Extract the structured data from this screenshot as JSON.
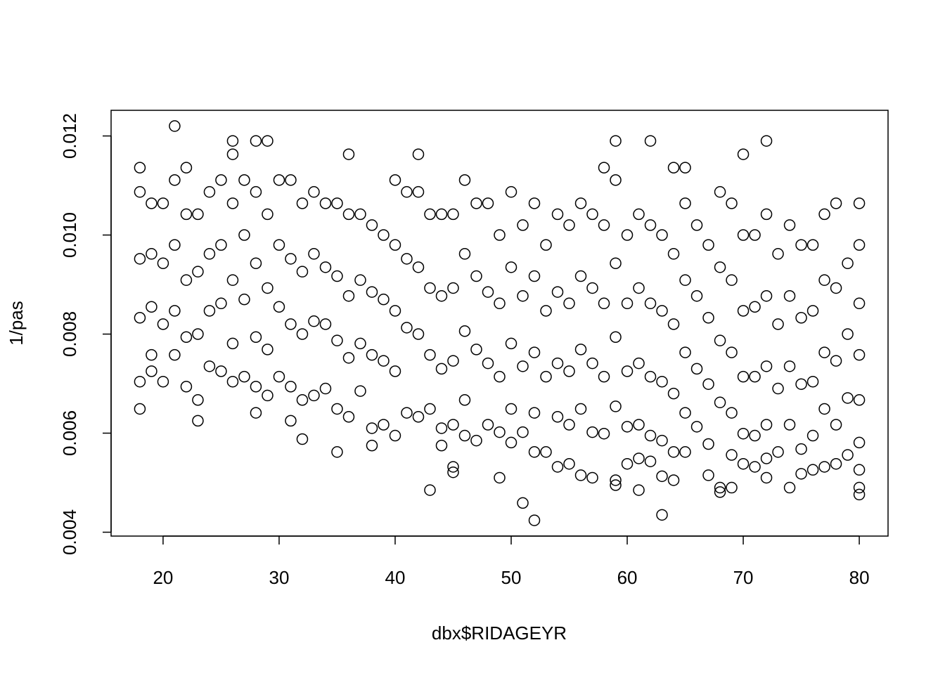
{
  "chart_data": {
    "type": "scatter",
    "x_label": "dbx$RIDAGEYR",
    "y_label": "1/pas",
    "xlim": [
      15.52,
      82.48
    ],
    "ylim": [
      0.003922,
      0.012518
    ],
    "xticks": [
      20,
      30,
      40,
      50,
      60,
      70,
      80
    ],
    "yticks": [
      0.004,
      0.006,
      0.008,
      {
        "value": 0.01,
        "label": "0.010"
      },
      0.012
    ],
    "color": "#000000",
    "x": [
      18,
      18,
      18,
      18,
      18,
      18,
      19,
      19,
      19,
      19,
      19,
      20,
      20,
      20,
      20,
      21,
      21,
      21,
      21,
      21,
      22,
      22,
      22,
      22,
      22,
      23,
      23,
      23,
      23,
      23,
      24,
      24,
      24,
      24,
      25,
      25,
      25,
      25,
      26,
      26,
      26,
      26,
      26,
      26,
      27,
      27,
      27,
      27,
      28,
      28,
      28,
      28,
      28,
      28,
      29,
      29,
      29,
      29,
      29,
      30,
      30,
      30,
      30,
      31,
      31,
      31,
      31,
      31,
      32,
      32,
      32,
      32,
      32,
      33,
      33,
      33,
      33,
      34,
      34,
      34,
      34,
      35,
      35,
      35,
      35,
      35,
      36,
      36,
      36,
      36,
      36,
      37,
      37,
      37,
      37,
      38,
      38,
      38,
      38,
      38,
      39,
      39,
      39,
      39,
      40,
      40,
      40,
      40,
      40,
      41,
      41,
      41,
      41,
      42,
      42,
      42,
      42,
      42,
      43,
      43,
      43,
      43,
      43,
      44,
      44,
      44,
      44,
      44,
      45,
      45,
      45,
      45,
      45,
      45,
      46,
      46,
      46,
      46,
      46,
      47,
      47,
      47,
      47,
      48,
      48,
      48,
      48,
      49,
      49,
      49,
      49,
      49,
      50,
      50,
      50,
      50,
      50,
      51,
      51,
      51,
      51,
      51,
      52,
      52,
      52,
      52,
      52,
      52,
      53,
      53,
      53,
      53,
      54,
      54,
      54,
      54,
      54,
      55,
      55,
      55,
      55,
      55,
      56,
      56,
      56,
      56,
      56,
      57,
      57,
      57,
      57,
      57,
      58,
      58,
      58,
      58,
      58,
      59,
      59,
      59,
      59,
      59,
      59,
      59,
      60,
      60,
      60,
      60,
      60,
      61,
      61,
      61,
      61,
      61,
      61,
      62,
      62,
      62,
      62,
      62,
      62,
      63,
      63,
      63,
      63,
      63,
      63,
      64,
      64,
      64,
      64,
      64,
      64,
      65,
      65,
      65,
      65,
      65,
      65,
      66,
      66,
      66,
      66,
      67,
      67,
      67,
      67,
      67,
      68,
      68,
      68,
      68,
      68,
      68,
      69,
      69,
      69,
      69,
      69,
      69,
      70,
      70,
      70,
      70,
      70,
      70,
      71,
      71,
      71,
      71,
      71,
      72,
      72,
      72,
      72,
      72,
      72,
      72,
      73,
      73,
      73,
      73,
      74,
      74,
      74,
      74,
      74,
      75,
      75,
      75,
      75,
      75,
      76,
      76,
      76,
      76,
      76,
      77,
      77,
      77,
      77,
      77,
      78,
      78,
      78,
      78,
      78,
      79,
      79,
      79,
      79,
      80,
      80,
      80,
      80,
      80,
      80,
      80,
      80,
      80
    ],
    "values": [
      0.01136,
      0.01087,
      0.00952,
      0.00833,
      0.00704,
      0.00649,
      0.01064,
      0.00962,
      0.00855,
      0.00758,
      0.00725,
      0.01064,
      0.00943,
      0.0082,
      0.00704,
      0.0122,
      0.01111,
      0.0098,
      0.00847,
      0.00758,
      0.01136,
      0.01042,
      0.00909,
      0.00794,
      0.00694,
      0.01042,
      0.00926,
      0.008,
      0.00667,
      0.00625,
      0.01087,
      0.00962,
      0.00847,
      0.00735,
      0.01111,
      0.0098,
      0.00862,
      0.00725,
      0.0119,
      0.01163,
      0.01064,
      0.00909,
      0.00781,
      0.00704,
      0.01111,
      0.01,
      0.0087,
      0.00714,
      0.0119,
      0.01087,
      0.00943,
      0.00794,
      0.00694,
      0.00641,
      0.0119,
      0.01042,
      0.00893,
      0.00769,
      0.00676,
      0.01111,
      0.0098,
      0.00855,
      0.00714,
      0.01111,
      0.00952,
      0.0082,
      0.00694,
      0.00625,
      0.01064,
      0.00926,
      0.008,
      0.00667,
      0.00588,
      0.01087,
      0.00962,
      0.00826,
      0.00676,
      0.01064,
      0.00935,
      0.0082,
      0.0069,
      0.01064,
      0.00917,
      0.00787,
      0.00649,
      0.00562,
      0.01163,
      0.01042,
      0.00877,
      0.00752,
      0.00633,
      0.01042,
      0.00909,
      0.00781,
      0.00685,
      0.0102,
      0.00885,
      0.00758,
      0.0061,
      0.00575,
      0.01,
      0.0087,
      0.00746,
      0.00617,
      0.01111,
      0.0098,
      0.00847,
      0.00725,
      0.00595,
      0.01087,
      0.00952,
      0.00813,
      0.00641,
      0.01163,
      0.01087,
      0.00935,
      0.008,
      0.00633,
      0.01042,
      0.00893,
      0.00758,
      0.00649,
      0.00485,
      0.01042,
      0.00877,
      0.0073,
      0.0061,
      0.00575,
      0.01042,
      0.00893,
      0.00746,
      0.00617,
      0.00532,
      0.00521,
      0.01111,
      0.00962,
      0.00806,
      0.00667,
      0.00595,
      0.01064,
      0.00917,
      0.00769,
      0.00585,
      0.01064,
      0.00885,
      0.00741,
      0.00617,
      0.01,
      0.00862,
      0.00714,
      0.00602,
      0.0051,
      0.01087,
      0.00935,
      0.00781,
      0.00649,
      0.00581,
      0.0102,
      0.00877,
      0.00735,
      0.00602,
      0.00459,
      0.01064,
      0.00917,
      0.00763,
      0.00641,
      0.00562,
      0.00424,
      0.0098,
      0.00847,
      0.00714,
      0.00562,
      0.01042,
      0.00885,
      0.00741,
      0.00633,
      0.00532,
      0.0102,
      0.00862,
      0.00725,
      0.00617,
      0.00538,
      0.01064,
      0.00917,
      0.00769,
      0.00649,
      0.00515,
      0.01042,
      0.00893,
      0.00741,
      0.00602,
      0.0051,
      0.01136,
      0.0102,
      0.00862,
      0.00714,
      0.00599,
      0.0119,
      0.01111,
      0.00943,
      0.00794,
      0.00654,
      0.00505,
      0.00495,
      0.01,
      0.00862,
      0.00725,
      0.00613,
      0.00538,
      0.01042,
      0.00893,
      0.00741,
      0.00617,
      0.00549,
      0.00485,
      0.0119,
      0.0102,
      0.00862,
      0.00714,
      0.00595,
      0.00543,
      0.01,
      0.00847,
      0.00704,
      0.00585,
      0.00513,
      0.00435,
      0.01136,
      0.00962,
      0.0082,
      0.0068,
      0.00562,
      0.00505,
      0.01136,
      0.01064,
      0.00909,
      0.00763,
      0.00641,
      0.00562,
      0.0102,
      0.00877,
      0.0073,
      0.00613,
      0.0098,
      0.00833,
      0.00699,
      0.00578,
      0.00515,
      0.01087,
      0.00935,
      0.00787,
      0.00662,
      0.0049,
      0.00481,
      0.01064,
      0.00909,
      0.00763,
      0.00641,
      0.00556,
      0.0049,
      0.01163,
      0.01,
      0.00847,
      0.00714,
      0.00599,
      0.00538,
      0.01,
      0.00855,
      0.00714,
      0.00595,
      0.00532,
      0.0119,
      0.01042,
      0.00877,
      0.00735,
      0.00617,
      0.00549,
      0.0051,
      0.00962,
      0.0082,
      0.0069,
      0.00562,
      0.0102,
      0.00877,
      0.00735,
      0.00617,
      0.0049,
      0.0098,
      0.00833,
      0.00699,
      0.00568,
      0.00518,
      0.0098,
      0.00847,
      0.00704,
      0.00595,
      0.00526,
      0.01042,
      0.00909,
      0.00763,
      0.00649,
      0.00532,
      0.01064,
      0.00893,
      0.00746,
      0.00617,
      0.00538,
      0.00943,
      0.008,
      0.00671,
      0.00556,
      0.01064,
      0.0098,
      0.00862,
      0.00758,
      0.00667,
      0.00581,
      0.00526,
      0.0049,
      0.00476
    ]
  }
}
